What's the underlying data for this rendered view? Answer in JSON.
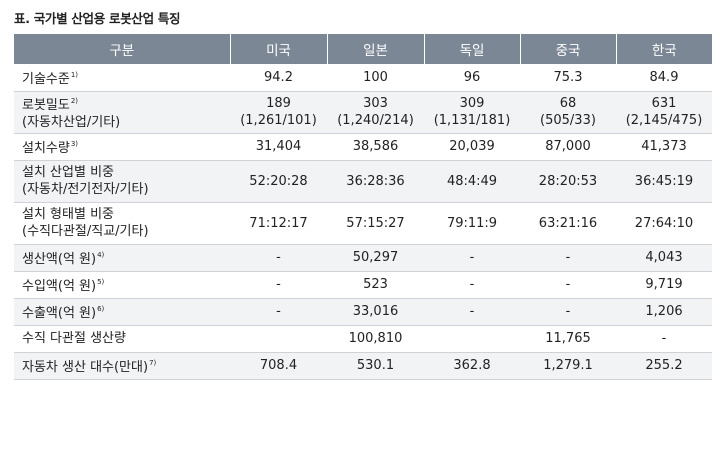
{
  "caption": "표. 국가별 산업용 로봇산업 특징",
  "headers": [
    "구분",
    "미국",
    "일본",
    "독일",
    "중국",
    "한국"
  ],
  "rows": [
    {
      "label": [
        "기술수준"
      ],
      "note": "1)",
      "values": [
        [
          "94.2"
        ],
        [
          "100"
        ],
        [
          "96"
        ],
        [
          "75.3"
        ],
        [
          "84.9"
        ]
      ]
    },
    {
      "label": [
        "로봇밀도",
        "(자동차산업/기타)"
      ],
      "note": "2)",
      "values": [
        [
          "189",
          "(1,261/101)"
        ],
        [
          "303",
          "(1,240/214)"
        ],
        [
          "309",
          "(1,131/181)"
        ],
        [
          "68",
          "(505/33)"
        ],
        [
          "631",
          "(2,145/475)"
        ]
      ]
    },
    {
      "label": [
        "설치수량"
      ],
      "note": "3)",
      "values": [
        [
          "31,404"
        ],
        [
          "38,586"
        ],
        [
          "20,039"
        ],
        [
          "87,000"
        ],
        [
          "41,373"
        ]
      ]
    },
    {
      "label": [
        "설치 산업별 비중",
        "(자동차/전기전자/기타)"
      ],
      "note": "",
      "values": [
        [
          "52:20:28"
        ],
        [
          "36:28:36"
        ],
        [
          "48:4:49"
        ],
        [
          "28:20:53"
        ],
        [
          "36:45:19"
        ]
      ]
    },
    {
      "label": [
        "설치 형태별 비중",
        "(수직다관절/직교/기타)"
      ],
      "note": "",
      "values": [
        [
          "71:12:17"
        ],
        [
          "57:15:27"
        ],
        [
          "79:11:9"
        ],
        [
          "63:21:16"
        ],
        [
          "27:64:10"
        ]
      ]
    },
    {
      "label": [
        "생산액(억 원)"
      ],
      "note": "4)",
      "values": [
        [
          "-"
        ],
        [
          "50,297"
        ],
        [
          "-"
        ],
        [
          "-"
        ],
        [
          "4,043"
        ]
      ]
    },
    {
      "label": [
        "수입액(억 원)"
      ],
      "note": "5)",
      "values": [
        [
          "-"
        ],
        [
          "523"
        ],
        [
          "-"
        ],
        [
          "-"
        ],
        [
          "9,719"
        ]
      ]
    },
    {
      "label": [
        "수출액(억 원)"
      ],
      "note": "6)",
      "values": [
        [
          "-"
        ],
        [
          "33,016"
        ],
        [
          "-"
        ],
        [
          "-"
        ],
        [
          "1,206"
        ]
      ]
    },
    {
      "label": [
        "수직 다관절 생산량"
      ],
      "note": "",
      "values": [
        [
          ""
        ],
        [
          "100,810"
        ],
        [
          ""
        ],
        [
          "11,765"
        ],
        [
          "-"
        ]
      ]
    },
    {
      "label": [
        "자동차 생산 대수(만대)"
      ],
      "note": "7)",
      "values": [
        [
          "708.4"
        ],
        [
          "530.1"
        ],
        [
          "362.8"
        ],
        [
          "1,279.1"
        ],
        [
          "255.2"
        ]
      ]
    }
  ]
}
